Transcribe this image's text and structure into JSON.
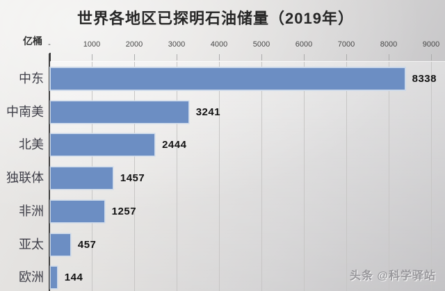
{
  "watermark": {
    "text": "头条 @科学驿站"
  },
  "chart_data": {
    "type": "bar",
    "orientation": "horizontal",
    "title": "世界各地区已探明石油储量（2019年）",
    "unit": "亿桶",
    "categories": [
      "中东",
      "中南美",
      "北美",
      "独联体",
      "非洲",
      "亚太",
      "欧洲"
    ],
    "values": [
      8338,
      3241,
      2444,
      1457,
      1257,
      457,
      144
    ],
    "x_ticks": {
      "labels": [
        "-",
        "1000",
        "2000",
        "3000",
        "4000",
        "5000",
        "6000",
        "7000",
        "8000",
        "9000"
      ],
      "values": [
        0,
        1000,
        2000,
        3000,
        4000,
        5000,
        6000,
        7000,
        8000,
        9000
      ]
    },
    "xlim": [
      0,
      9000
    ],
    "xlabel": "",
    "ylabel": "",
    "grid": true,
    "legend": false,
    "colors": {
      "bar": "#6c8ec3",
      "bar_border": "#ccd9ea",
      "grid": "#c7c6c5",
      "axis": "#3f3f3f",
      "title": "#262626",
      "category": "#3e3e48",
      "value": "#121212"
    }
  }
}
